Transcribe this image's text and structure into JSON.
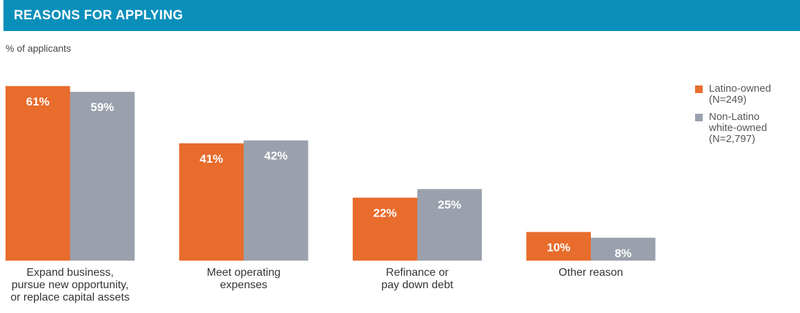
{
  "chart_data": {
    "type": "bar",
    "title": "REASONS FOR APPLYING",
    "subtitle": "% of applicants",
    "categories": [
      [
        "Expand business,",
        "pursue new opportunity,",
        "or replace capital assets"
      ],
      [
        "Meet operating",
        "expenses"
      ],
      [
        "Refinance or",
        "pay down debt"
      ],
      [
        "Other reason"
      ]
    ],
    "series": [
      {
        "name": "Latino-owned (N=249)",
        "color": "#e86c2c",
        "values": [
          61,
          41,
          22,
          10
        ],
        "value_labels": [
          "61%",
          "41%",
          "22%",
          "10%"
        ]
      },
      {
        "name": "Non-Latino white-owned (N=2,797)",
        "color": "#9aa1ad",
        "values": [
          59,
          42,
          25,
          8
        ],
        "value_labels": [
          "59%",
          "42%",
          "25%",
          "8%"
        ]
      }
    ],
    "ylim": [
      0,
      70
    ],
    "legend": "top-right"
  }
}
